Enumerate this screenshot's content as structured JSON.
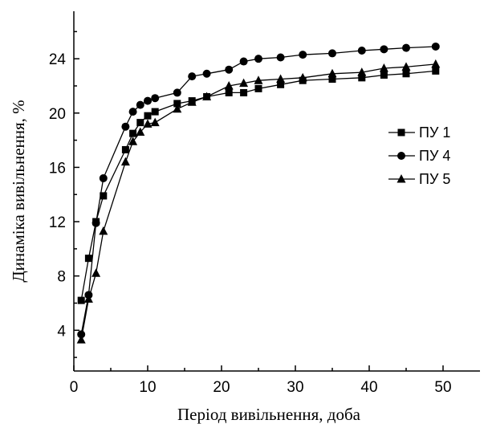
{
  "chart_data": {
    "type": "line",
    "xlabel": "Період вивільнення, доба",
    "ylabel": "Динаміка вивільнення, %",
    "xlim": [
      0,
      55
    ],
    "ylim": [
      1,
      27.5
    ],
    "x_ticks": [
      0,
      10,
      20,
      30,
      40,
      50
    ],
    "x_tick_labels": [
      "0",
      "10",
      "20",
      "30",
      "40",
      "50"
    ],
    "y_ticks": [
      4,
      8,
      12,
      16,
      20,
      24
    ],
    "y_tick_labels": [
      "4",
      "8",
      "12",
      "16",
      "20",
      "24"
    ],
    "grid": false,
    "legend_position": "right",
    "series": [
      {
        "name": "ПУ 1",
        "marker": "square",
        "color": "#000000",
        "x": [
          1,
          2,
          3,
          4,
          7,
          8,
          9,
          10,
          11,
          14,
          16,
          18,
          21,
          23,
          25,
          28,
          31,
          35,
          39,
          42,
          45,
          49
        ],
        "y": [
          6.2,
          9.3,
          12.0,
          13.9,
          17.3,
          18.5,
          19.3,
          19.8,
          20.1,
          20.7,
          20.9,
          21.2,
          21.5,
          21.5,
          21.8,
          22.1,
          22.4,
          22.5,
          22.6,
          22.8,
          22.9,
          23.1
        ]
      },
      {
        "name": "ПУ 4",
        "marker": "circle",
        "color": "#000000",
        "x": [
          1,
          2,
          3,
          4,
          7,
          8,
          9,
          10,
          11,
          14,
          16,
          18,
          21,
          23,
          25,
          28,
          31,
          35,
          39,
          42,
          45,
          49
        ],
        "y": [
          3.7,
          6.6,
          11.9,
          15.2,
          19.0,
          20.1,
          20.6,
          20.9,
          21.1,
          21.5,
          22.7,
          22.9,
          23.2,
          23.8,
          24.0,
          24.1,
          24.3,
          24.4,
          24.6,
          24.7,
          24.8,
          24.9
        ]
      },
      {
        "name": "ПУ 5",
        "marker": "triangle",
        "color": "#000000",
        "x": [
          1,
          2,
          3,
          4,
          7,
          8,
          9,
          10,
          11,
          14,
          16,
          18,
          21,
          23,
          25,
          28,
          31,
          35,
          39,
          42,
          45,
          49
        ],
        "y": [
          3.3,
          6.3,
          8.2,
          11.3,
          16.4,
          17.9,
          18.6,
          19.2,
          19.3,
          20.3,
          20.8,
          21.2,
          22.0,
          22.2,
          22.4,
          22.5,
          22.6,
          22.9,
          23.0,
          23.3,
          23.4,
          23.6
        ]
      }
    ]
  }
}
